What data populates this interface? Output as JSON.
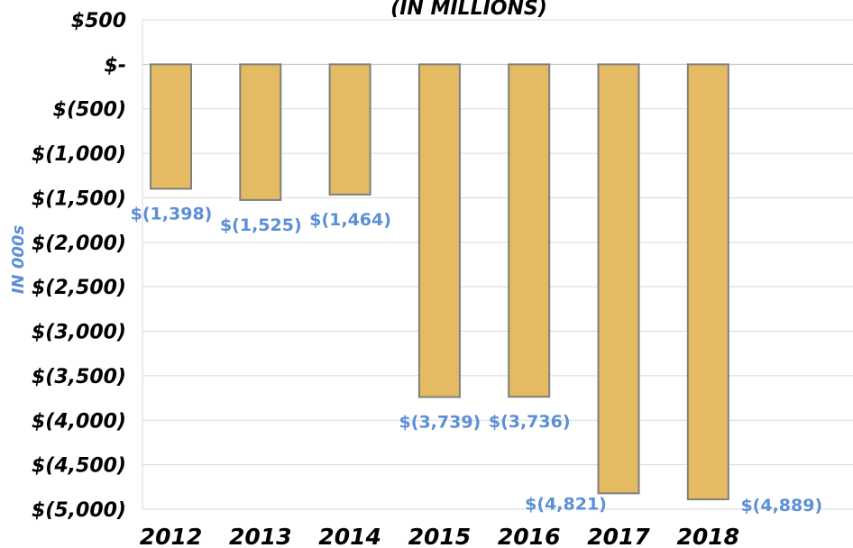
{
  "chart_data": {
    "type": "bar",
    "title": "(IN MILLIONS)",
    "ylabel": "IN 000s",
    "xlabel": "",
    "categories": [
      "2012",
      "2013",
      "2014",
      "2015",
      "2016",
      "2017",
      "2018"
    ],
    "values": [
      -1398,
      -1525,
      -1464,
      -3739,
      -3736,
      -4821,
      -4889
    ],
    "data_labels": [
      "$(1,398)",
      "$(1,525)",
      "$(1,464)",
      "$(3,739)",
      "$(3,736)",
      "$(4,821)",
      "$(4,889)"
    ],
    "ylim": [
      -5000,
      500
    ],
    "yticks": [
      500,
      0,
      -500,
      -1000,
      -1500,
      -2000,
      -2500,
      -3000,
      -3500,
      -4000,
      -4500,
      -5000
    ],
    "ytick_labels": [
      "$500",
      "$-",
      "$(500)",
      "$(1,000)",
      "$(1,500)",
      "$(2,000)",
      "$(2,500)",
      "$(3,000)",
      "$(3,500)",
      "$(4,000)",
      "$(4,500)",
      "$(5,000)"
    ],
    "grid": true,
    "legend": "none",
    "colors": {
      "bar_fill": "#E4BA62",
      "bar_stroke": "#7F7F7F",
      "data_label": "#5B8FD6",
      "axis_title": "#5B8FD6",
      "gridline": "#D9D9D9",
      "zero_line": "#BFBFBF"
    }
  }
}
